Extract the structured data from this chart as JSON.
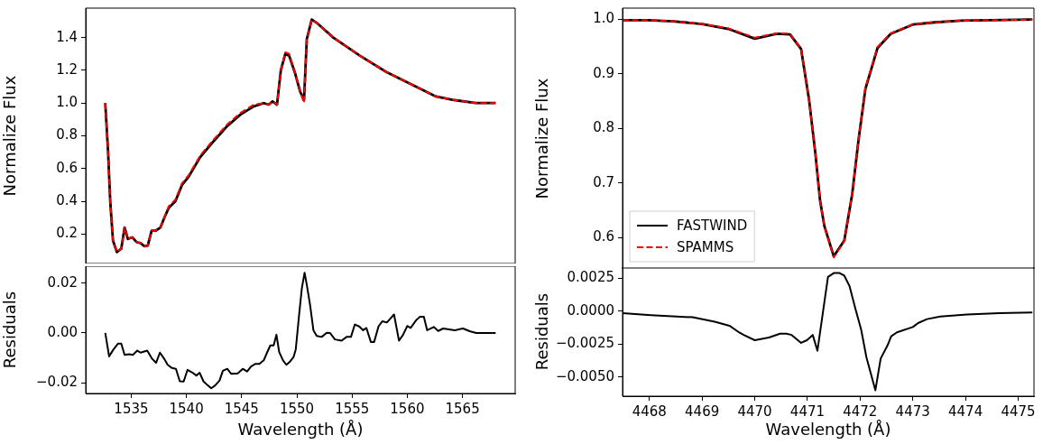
{
  "chart_data": [
    {
      "type": "line",
      "ylabel": "Normalize Flux",
      "xlim": [
        1530.88,
        1569.77
      ],
      "ylim": [
        0.02,
        1.58
      ],
      "yticks": [
        0.2,
        0.4,
        0.6,
        0.8,
        {
          "value": 1,
          "label": "1.0"
        },
        1.2,
        1.4
      ],
      "tick_labels": "y",
      "grid": false,
      "marker": "none",
      "x": [
        1532.65,
        1532.9,
        1533.1,
        1533.35,
        1533.7,
        1534.1,
        1534.4,
        1534.7,
        1535.1,
        1535.5,
        1535.85,
        1536.2,
        1536.5,
        1536.85,
        1537.2,
        1537.65,
        1538.0,
        1538.4,
        1539.0,
        1539.6,
        1540.2,
        1541.25,
        1542.5,
        1543.7,
        1544.9,
        1546.1,
        1547.0,
        1547.45,
        1547.8,
        1548.2,
        1548.55,
        1548.95,
        1549.3,
        1549.85,
        1550.3,
        1550.65,
        1550.9,
        1551.35,
        1551.8,
        1553.3,
        1555.7,
        1558.1,
        1560.5,
        1562.6,
        1564.1,
        1566.2,
        1568.0
      ],
      "series": [
        {
          "color": "#000000",
          "line_style": "solid",
          "values": [
            1.0,
            0.71,
            0.4,
            0.16,
            0.09,
            0.11,
            0.24,
            0.17,
            0.18,
            0.15,
            0.145,
            0.125,
            0.13,
            0.22,
            0.22,
            0.24,
            0.3,
            0.36,
            0.4,
            0.5,
            0.55,
            0.67,
            0.77,
            0.86,
            0.93,
            0.98,
            1.0,
            0.99,
            1.01,
            0.99,
            1.2,
            1.3,
            1.29,
            1.18,
            1.07,
            1.02,
            1.39,
            1.51,
            1.49,
            1.4,
            1.29,
            1.19,
            1.11,
            1.04,
            1.02,
            1.0,
            1.0
          ]
        },
        {
          "color": "#ff0000",
          "line_style": "dashed",
          "values": [
            1.0,
            0.71,
            0.4,
            0.16,
            0.09,
            0.11,
            0.24,
            0.17,
            0.18,
            0.15,
            0.145,
            0.125,
            0.13,
            0.22,
            0.22,
            0.24,
            0.3,
            0.37,
            0.41,
            0.51,
            0.56,
            0.68,
            0.78,
            0.87,
            0.94,
            0.99,
            1.0,
            0.99,
            1.01,
            0.99,
            1.2,
            1.31,
            1.3,
            1.18,
            1.07,
            1.0,
            1.39,
            1.51,
            1.49,
            1.4,
            1.29,
            1.19,
            1.11,
            1.04,
            1.02,
            1.0,
            1.0
          ]
        }
      ]
    },
    {
      "type": "line",
      "ylabel": "Normalize Flux",
      "xlim": [
        4467.49,
        4475.3
      ],
      "ylim": [
        0.543,
        1.02
      ],
      "yticks": [
        0.6,
        0.7,
        0.8,
        0.9,
        {
          "value": 1,
          "label": "1.0"
        }
      ],
      "tick_labels": "y",
      "grid": false,
      "marker": "none",
      "legend": "bottom left",
      "x": [
        4467.49,
        4467.97,
        4468.45,
        4469.0,
        4469.5,
        4470.0,
        4470.42,
        4470.67,
        4470.88,
        4471.03,
        4471.15,
        4471.24,
        4471.32,
        4471.5,
        4471.7,
        4471.85,
        4471.97,
        4472.1,
        4472.33,
        4472.58,
        4473.0,
        4473.42,
        4473.91,
        4474.45,
        4475.27
      ],
      "series": [
        {
          "name": "FASTWIND",
          "color": "#000000",
          "line_style": "solid",
          "values": [
            0.998,
            0.998,
            0.996,
            0.991,
            0.982,
            0.964,
            0.973,
            0.972,
            0.945,
            0.853,
            0.755,
            0.668,
            0.622,
            0.566,
            0.595,
            0.68,
            0.779,
            0.872,
            0.947,
            0.973,
            0.99,
            0.994,
            0.997,
            0.998,
            0.999
          ]
        },
        {
          "name": "SPAMMS",
          "color": "#ff0000",
          "line_style": "dashed",
          "values": [
            0.998,
            0.998,
            0.996,
            0.991,
            0.983,
            0.966,
            0.974,
            0.973,
            0.945,
            0.853,
            0.755,
            0.668,
            0.622,
            0.564,
            0.594,
            0.68,
            0.779,
            0.874,
            0.949,
            0.974,
            0.99,
            0.994,
            0.997,
            0.998,
            0.999
          ]
        }
      ]
    },
    {
      "type": "line",
      "xlabel": "Wavelength (Å)",
      "ylabel": "Residuals",
      "xlim": [
        1530.88,
        1569.77
      ],
      "ylim": [
        -0.0243,
        0.0268
      ],
      "xticks": [
        1535,
        1540,
        1545,
        1550,
        1555,
        1560,
        1565
      ],
      "yticks": [
        {
          "value": -0.02,
          "label": "−0.02"
        },
        {
          "value": 0,
          "label": "0.00"
        },
        0.02
      ],
      "grid": false,
      "marker": "none",
      "x": [
        1532.65,
        1533.0,
        1533.4,
        1533.8,
        1534.1,
        1534.4,
        1534.8,
        1535.15,
        1535.55,
        1535.85,
        1536.45,
        1536.9,
        1537.25,
        1537.6,
        1537.95,
        1538.3,
        1538.7,
        1539.05,
        1539.4,
        1539.75,
        1540.1,
        1540.5,
        1540.9,
        1541.2,
        1541.55,
        1541.9,
        1542.25,
        1542.6,
        1543.0,
        1543.3,
        1543.7,
        1544.05,
        1544.65,
        1545.1,
        1545.5,
        1545.85,
        1546.25,
        1546.6,
        1547.0,
        1547.3,
        1547.6,
        1547.9,
        1548.15,
        1548.4,
        1548.75,
        1549.05,
        1549.4,
        1549.7,
        1549.9,
        1550.2,
        1550.45,
        1550.7,
        1550.9,
        1551.2,
        1551.5,
        1551.8,
        1552.25,
        1552.7,
        1553.0,
        1553.45,
        1554.05,
        1554.5,
        1554.9,
        1555.25,
        1555.65,
        1556.0,
        1556.3,
        1556.7,
        1557.0,
        1557.4,
        1557.75,
        1558.15,
        1558.8,
        1559.25,
        1559.6,
        1560.0,
        1560.3,
        1560.8,
        1561.15,
        1561.5,
        1561.8,
        1562.4,
        1562.8,
        1563.25,
        1564.3,
        1565.05,
        1565.65,
        1566.25,
        1568.0
      ],
      "series": [
        {
          "color": "#000000",
          "line_style": "solid",
          "values": [
            0.0,
            -0.0094,
            -0.0066,
            -0.0043,
            -0.0043,
            -0.0088,
            -0.0085,
            -0.0088,
            -0.0071,
            -0.0079,
            -0.0071,
            -0.0104,
            -0.012,
            -0.0079,
            -0.0101,
            -0.0128,
            -0.0141,
            -0.0144,
            -0.0194,
            -0.0195,
            -0.0148,
            -0.0158,
            -0.0171,
            -0.016,
            -0.0195,
            -0.0209,
            -0.0222,
            -0.0211,
            -0.0191,
            -0.0152,
            -0.0144,
            -0.0164,
            -0.0162,
            -0.0144,
            -0.0155,
            -0.0135,
            -0.0124,
            -0.0124,
            -0.011,
            -0.0079,
            -0.005,
            -0.005,
            -0.0007,
            -0.0077,
            -0.011,
            -0.0128,
            -0.0114,
            -0.0097,
            -0.0066,
            0.0071,
            0.0179,
            0.0242,
            0.0193,
            0.0112,
            0.0011,
            -0.0012,
            -0.0016,
            0.0001,
            0.0,
            -0.0026,
            -0.0031,
            -0.0016,
            -0.0016,
            0.0034,
            0.0026,
            0.0011,
            0.002,
            -0.0036,
            -0.0036,
            0.0027,
            0.0047,
            0.0042,
            0.0074,
            -0.0031,
            -0.0009,
            0.0028,
            0.002,
            0.0051,
            0.0065,
            0.0065,
            0.0011,
            0.0024,
            0.0008,
            0.0018,
            0.0011,
            0.0018,
            0.0007,
            0.0,
            0.0
          ]
        }
      ]
    },
    {
      "type": "line",
      "xlabel": "Wavelength (Å)",
      "ylabel": "Residuals",
      "xlim": [
        4467.49,
        4475.3
      ],
      "ylim": [
        -0.00645,
        0.00335
      ],
      "xticks": [
        4468,
        4469,
        4470,
        4471,
        4472,
        4473,
        4474,
        4475
      ],
      "yticks": [
        {
          "value": -0.005,
          "label": "−0.0050"
        },
        {
          "value": -0.0025,
          "label": "−0.0025"
        },
        {
          "value": 0,
          "label": "0.0000"
        },
        0.0025
      ],
      "grid": false,
      "marker": "none",
      "x": [
        4467.49,
        4468.03,
        4468.82,
        4469.24,
        4469.52,
        4469.7,
        4469.79,
        4470.0,
        4470.27,
        4470.48,
        4470.6,
        4470.7,
        4470.88,
        4470.99,
        4471.1,
        4471.19,
        4471.39,
        4471.5,
        4471.61,
        4471.7,
        4471.8,
        4471.91,
        4472.02,
        4472.12,
        4472.29,
        4472.39,
        4472.52,
        4472.59,
        4472.7,
        4473.0,
        4473.1,
        4473.27,
        4473.52,
        4474.03,
        4474.64,
        4475.27
      ],
      "series": [
        {
          "color": "#000000",
          "line_style": "solid",
          "values": [
            -0.00015,
            -0.0003,
            -0.00046,
            -0.0008,
            -0.0011,
            -0.0016,
            -0.0018,
            -0.0022,
            -0.002,
            -0.0017,
            -0.0017,
            -0.0018,
            -0.0024,
            -0.0022,
            -0.0018,
            -0.003,
            0.0026,
            0.0029,
            0.0029,
            0.0027,
            0.0019,
            0.0002,
            -0.0014,
            -0.0035,
            -0.006,
            -0.0036,
            -0.0026,
            -0.0019,
            -0.0016,
            -0.0012,
            -0.0009,
            -0.0006,
            -0.0004,
            -0.00025,
            -0.00015,
            -0.0001
          ]
        }
      ]
    }
  ]
}
